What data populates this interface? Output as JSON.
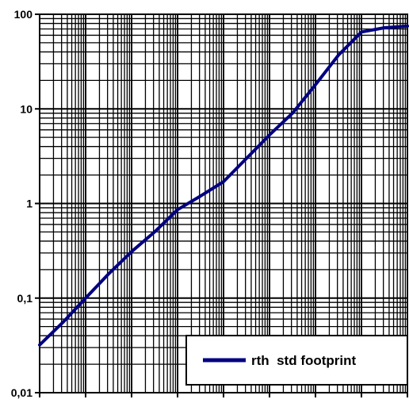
{
  "chart_data": {
    "type": "line",
    "title": "",
    "xlabel": "",
    "ylabel": "",
    "y_scale": "log",
    "ylim": [
      0.01,
      100
    ],
    "y_tick_labels": [
      "100",
      "10",
      "1",
      "0,1",
      "0,01"
    ],
    "x_tick_labels": [],
    "x_axis_tick_count": 8,
    "grid": true,
    "legend_position": "bottom-right",
    "series": [
      {
        "name": "rth  std footprint",
        "color": "#000080",
        "x": [
          0,
          0.5,
          1,
          1.5,
          2,
          2.5,
          3,
          3.5,
          4,
          4.5,
          5,
          5.5,
          6,
          6.5,
          7,
          7.5,
          8
        ],
        "values": [
          0.032,
          0.055,
          0.1,
          0.18,
          0.31,
          0.5,
          0.86,
          1.2,
          1.7,
          3.0,
          5.3,
          9.0,
          18,
          37,
          65,
          72,
          75
        ]
      }
    ]
  }
}
